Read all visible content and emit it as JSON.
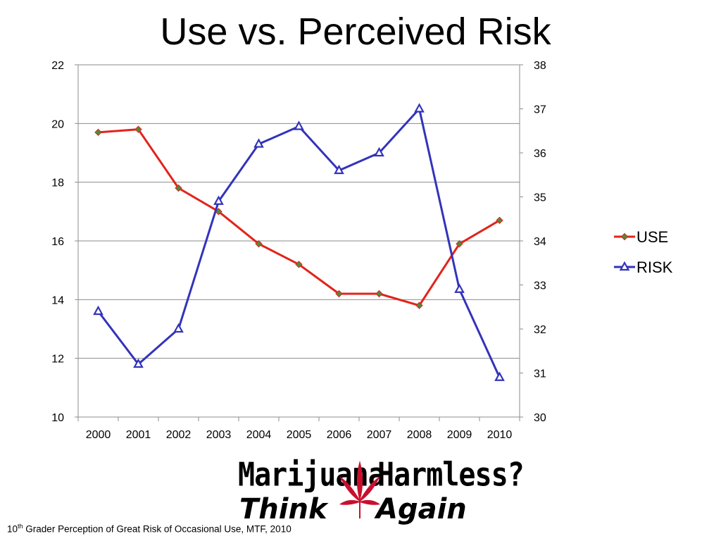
{
  "slide": {
    "title": "Use vs. Perceived Risk",
    "footnote_prefix": "10",
    "footnote_sup": "th",
    "footnote_text": " Grader  Perception of Great Risk of Occasional Use, MTF, 2010"
  },
  "logo": {
    "line1_word1": "Marijuana",
    "line1_word2": "Harmless?",
    "line2_word1": "Think",
    "line2_word2": "Again",
    "leaf_color": "#c8102e"
  },
  "chart_data": {
    "type": "line",
    "categories": [
      "2000",
      "2001",
      "2002",
      "2003",
      "2004",
      "2005",
      "2006",
      "2007",
      "2008",
      "2009",
      "2010"
    ],
    "y_left": {
      "min": 10,
      "max": 22,
      "step": 2,
      "ticks": [
        "10",
        "12",
        "14",
        "16",
        "18",
        "20",
        "22"
      ]
    },
    "y_right": {
      "min": 30,
      "max": 38,
      "step": 1,
      "ticks": [
        "30",
        "31",
        "32",
        "33",
        "34",
        "35",
        "36",
        "37",
        "38"
      ]
    },
    "grid": "horizontal",
    "legend_position": "right",
    "series": [
      {
        "name": "USE",
        "axis": "left",
        "color": "#e2231a",
        "marker": "diamond",
        "marker_fill": "#4f8a3c",
        "values": [
          19.7,
          19.8,
          17.8,
          17.0,
          15.9,
          15.2,
          14.2,
          14.2,
          13.8,
          15.9,
          16.7
        ]
      },
      {
        "name": "RISK",
        "axis": "right",
        "color": "#3333bb",
        "marker": "triangle",
        "marker_fill": "#ffffff",
        "values": [
          32.4,
          31.2,
          32.0,
          34.9,
          36.2,
          36.6,
          35.6,
          36.0,
          37.0,
          32.9,
          30.9
        ]
      }
    ]
  }
}
